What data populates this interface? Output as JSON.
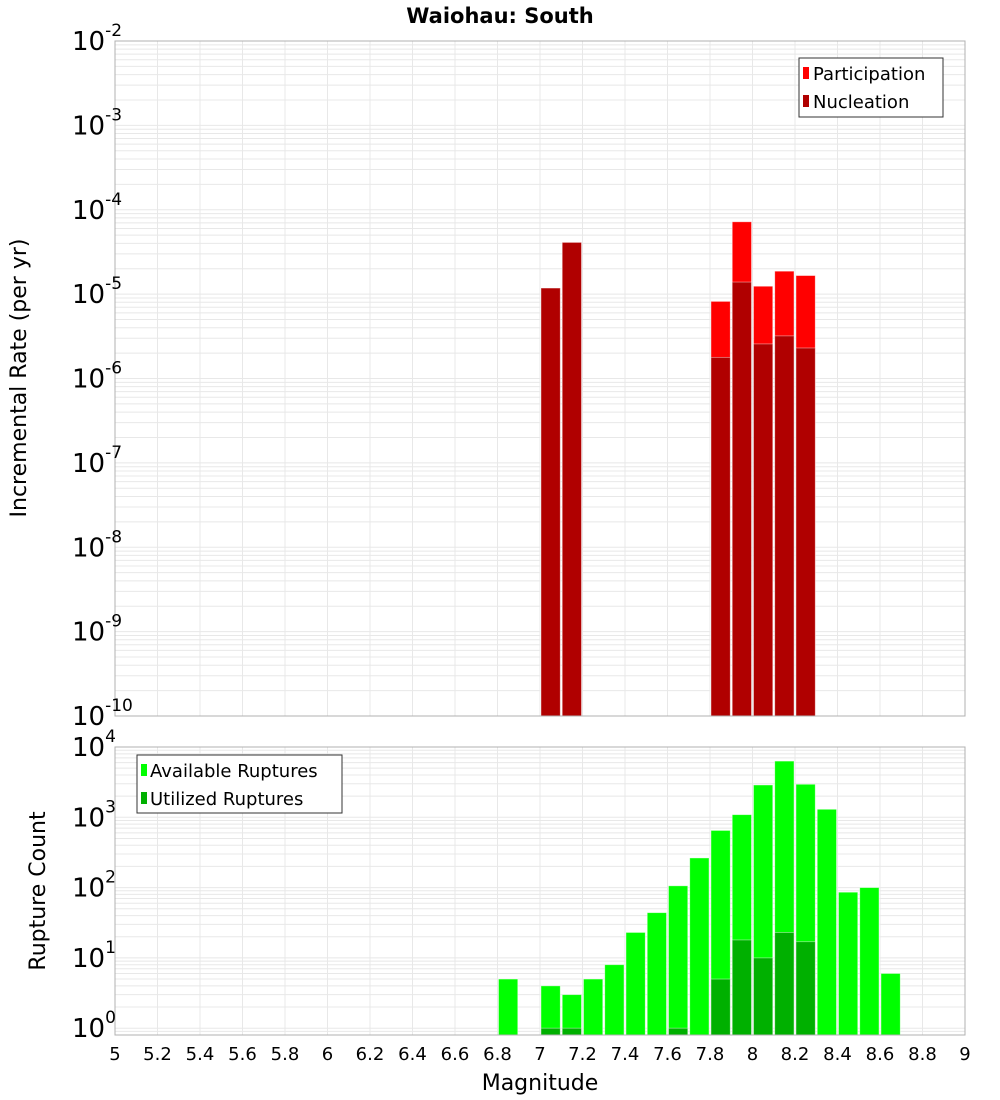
{
  "title": "Waiohau: South",
  "colors": {
    "participation": "#ff0000",
    "nucleation": "#b00000",
    "available": "#00ff00",
    "utilized": "#00b000",
    "grid": "#e8e8e8",
    "frame": "#b0b0b0"
  },
  "chart_data": [
    {
      "type": "bar",
      "name": "rate",
      "title": "Waiohau: South",
      "xlabel": "Magnitude",
      "ylabel": "Incremental Rate (per yr)",
      "yscale": "log",
      "xlim": [
        5,
        9
      ],
      "ylim": [
        1e-10,
        0.01
      ],
      "bin_width": 0.1,
      "y_tick_exponents": [
        -2,
        -3,
        -4,
        -5,
        -6,
        -7,
        -8,
        -9,
        -10
      ],
      "legend": {
        "placement": "top-right",
        "entries": [
          "Participation",
          "Nucleation"
        ]
      },
      "grid": true,
      "x": [
        7.05,
        7.15,
        7.85,
        7.95,
        8.05,
        8.15,
        8.25
      ],
      "series": [
        {
          "name": "Participation",
          "values": [
            1.18e-05,
            4.1e-05,
            8.2e-06,
            7.2e-05,
            1.24e-05,
            1.87e-05,
            1.66e-05
          ]
        },
        {
          "name": "Nucleation",
          "values": [
            1.18e-05,
            4.1e-05,
            1.78e-06,
            1.39e-05,
            2.57e-06,
            3.2e-06,
            2.3e-06
          ]
        }
      ]
    },
    {
      "type": "bar",
      "name": "count",
      "xlabel": "Magnitude",
      "ylabel": "Rupture Count",
      "yscale": "log",
      "xlim": [
        5,
        9
      ],
      "ylim": [
        0.8,
        10000
      ],
      "bin_width": 0.1,
      "x_ticks": [
        "5",
        "5.2",
        "5.4",
        "5.6",
        "5.8",
        "6",
        "6.2",
        "6.4",
        "6.6",
        "6.8",
        "7",
        "7.2",
        "7.4",
        "7.6",
        "7.8",
        "8",
        "8.2",
        "8.4",
        "8.6",
        "8.8",
        "9"
      ],
      "y_tick_exponents": [
        4,
        3,
        2,
        1,
        0
      ],
      "legend": {
        "placement": "top-left",
        "entries": [
          "Available Ruptures",
          "Utilized Ruptures"
        ]
      },
      "grid": true,
      "x": [
        6.85,
        7.05,
        7.15,
        7.25,
        7.35,
        7.45,
        7.55,
        7.65,
        7.75,
        7.85,
        7.95,
        8.05,
        8.15,
        8.25,
        8.35,
        8.45,
        8.55,
        8.65
      ],
      "series": [
        {
          "name": "Available Ruptures",
          "values": [
            5,
            4,
            3,
            5,
            8,
            23,
            44,
            106,
            264,
            650,
            1090,
            2880,
            6300,
            2950,
            1300,
            86,
            100,
            6
          ]
        },
        {
          "name": "Utilized Ruptures",
          "values": [
            0,
            1,
            1,
            0,
            0,
            0,
            0,
            1,
            0,
            5,
            18,
            10,
            23,
            17,
            0,
            0,
            0,
            0
          ]
        }
      ]
    }
  ]
}
